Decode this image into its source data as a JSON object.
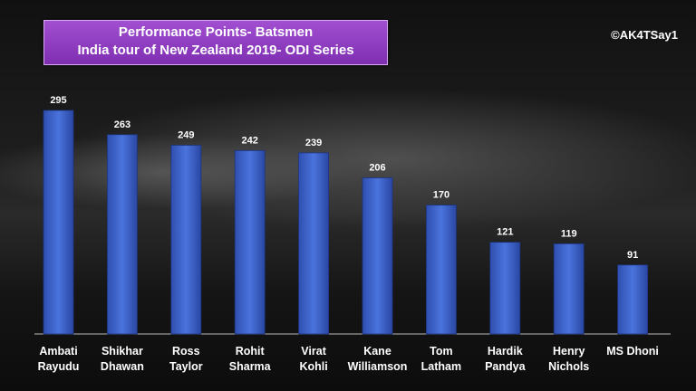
{
  "header": {
    "title_line1": "Performance  Points- Batsmen",
    "title_line2": "India tour of New Zealand 2019- ODI Series",
    "credit": "©AK4TSay1"
  },
  "colors": {
    "bar": "#3d62c9",
    "title_bg": "#8f3dc4",
    "text": "#ffffff"
  },
  "chart_data": {
    "type": "bar",
    "title": "Performance  Points- Batsmen",
    "subtitle": "India tour of New Zealand 2019- ODI Series",
    "categories": [
      [
        "Ambati",
        "Rayudu"
      ],
      [
        "Shikhar",
        "Dhawan"
      ],
      [
        "Ross",
        "Taylor"
      ],
      [
        "Rohit",
        "Sharma"
      ],
      [
        "Virat",
        "Kohli"
      ],
      [
        "Kane",
        "Williamson"
      ],
      [
        "Tom",
        "Latham"
      ],
      [
        "Hardik",
        "Pandya"
      ],
      [
        "Henry",
        "Nichols"
      ],
      [
        "MS Dhoni"
      ]
    ],
    "values": [
      295,
      263,
      249,
      242,
      239,
      206,
      170,
      121,
      119,
      91
    ],
    "xlabel": "",
    "ylabel": "",
    "ylim": [
      0,
      295
    ],
    "grid": false,
    "data_labels": true
  }
}
